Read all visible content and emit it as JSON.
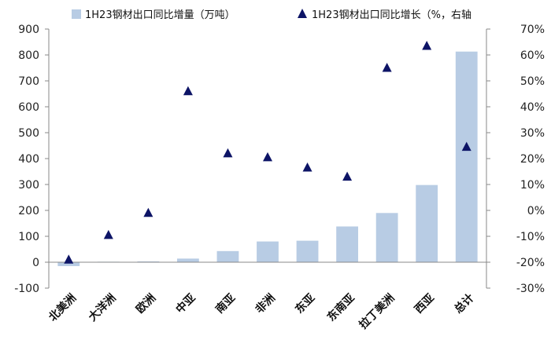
{
  "chart_data": {
    "type": "bar+scatter",
    "categories": [
      "北美洲",
      "大洋洲",
      "欧洲",
      "中亚",
      "南亚",
      "非洲",
      "东亚",
      "东南亚",
      "拉丁美洲",
      "西亚",
      "总计"
    ],
    "series": [
      {
        "name": "1H23钢材出口同比增量（万吨）",
        "type": "bar",
        "axis": "left",
        "color": "#b8cce4",
        "values": [
          -15,
          2,
          3,
          14,
          43,
          80,
          83,
          138,
          190,
          298,
          813
        ]
      },
      {
        "name": "1H23钢材出口同比增长（%，右轴",
        "type": "scatter",
        "marker": "triangle",
        "axis": "right",
        "color": "#0d1466",
        "values": [
          -19,
          -9.5,
          -1,
          46,
          22,
          20.5,
          16.5,
          13,
          55,
          63.5,
          24.5
        ]
      }
    ],
    "y_left": {
      "min": -100,
      "max": 900,
      "step": 100,
      "ticks": [
        "-100",
        "0",
        "100",
        "200",
        "300",
        "400",
        "500",
        "600",
        "700",
        "800",
        "900"
      ]
    },
    "y_right": {
      "min": -30,
      "max": 70,
      "step": 10,
      "ticks": [
        "-30%",
        "-20%",
        "-10%",
        "0%",
        "10%",
        "20%",
        "30%",
        "40%",
        "50%",
        "60%",
        "70%"
      ]
    },
    "grid": false,
    "legend_position": "top"
  }
}
